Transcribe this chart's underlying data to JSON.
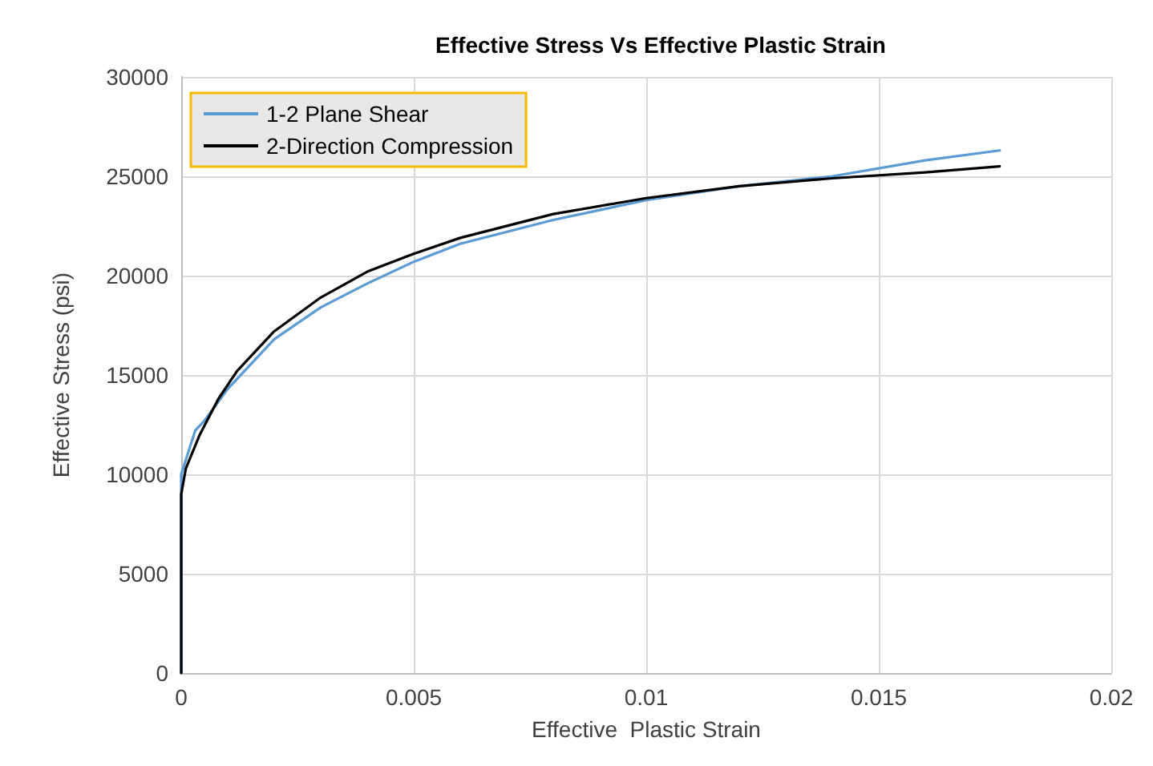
{
  "chart_data": {
    "type": "line",
    "title": "Effective Stress Vs Effective Plastic Strain",
    "xlabel": "Effective  Plastic Strain",
    "ylabel": "Effective Stress (psi)",
    "xlim": [
      0,
      0.02
    ],
    "xticks": [
      0,
      0.005,
      0.01,
      0.015,
      0.02
    ],
    "ylim": [
      0,
      30000
    ],
    "yticks": [
      0,
      5000,
      10000,
      15000,
      20000,
      25000,
      30000
    ],
    "grid": true,
    "legend": "top left",
    "marker": "none",
    "line_style": "solid",
    "series": [
      {
        "name": "1-2 Plane Shear",
        "color": "#5b9bd5",
        "x": [
          0,
          0,
          0.0003,
          0.0005,
          0.001,
          0.002,
          0.003,
          0.004,
          0.005,
          0.006,
          0.008,
          0.01,
          0.012,
          0.014,
          0.016,
          0.0176
        ],
        "values": [
          0,
          10000,
          12200,
          12700,
          14300,
          16800,
          18400,
          19600,
          20700,
          21600,
          22800,
          23800,
          24500,
          25000,
          25800,
          26300
        ]
      },
      {
        "name": "2-Direction Compression",
        "color": "#000000",
        "x": [
          0,
          0,
          0.0001,
          0.0004,
          0.0008,
          0.0012,
          0.002,
          0.003,
          0.004,
          0.005,
          0.006,
          0.008,
          0.01,
          0.012,
          0.014,
          0.016,
          0.0176
        ],
        "values": [
          0,
          9000,
          10300,
          12000,
          13800,
          15200,
          17200,
          18900,
          20200,
          21100,
          21900,
          23100,
          23900,
          24500,
          24900,
          25200,
          25500
        ]
      }
    ]
  }
}
